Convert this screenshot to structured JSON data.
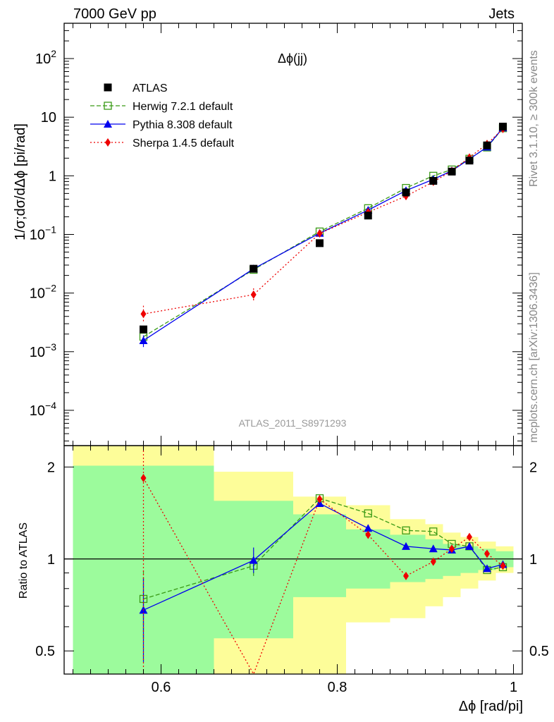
{
  "header": {
    "left": "7000 GeV pp",
    "right": "Jets"
  },
  "side_text": {
    "top": "Rivet 3.1.10, ≥ 300k events",
    "bottom": "mcplots.cern.ch [arXiv:1306.3436]"
  },
  "watermark": "ATLAS_2011_S8971293",
  "colors": {
    "atlas": "#000000",
    "herwig": "#3a9a16",
    "pythia": "#0000ee",
    "sherpa": "#ee0000",
    "band_inner": "#9cfb9c",
    "band_outer": "#fdfd99"
  },
  "chart_data": [
    {
      "type": "scatter",
      "title": "Δϕ(jj)",
      "ylabel": "1/σ;dσ/dΔϕ [pi/rad]",
      "yscale": "log",
      "ylim": [
        2.5e-05,
        400
      ],
      "xlim": [
        0.49,
        1.01
      ],
      "y_ticks": [
        {
          "value": 0.0001,
          "base": "10",
          "exp": "−4"
        },
        {
          "value": 0.001,
          "base": "10",
          "exp": "−3"
        },
        {
          "value": 0.01,
          "base": "10",
          "exp": "−2"
        },
        {
          "value": 0.1,
          "base": "10",
          "exp": "−1"
        },
        {
          "value": 1,
          "base": "1",
          "exp": ""
        },
        {
          "value": 10,
          "base": "10",
          "exp": ""
        },
        {
          "value": 100,
          "base": "10",
          "exp": "2"
        }
      ],
      "legend_position": "top-left",
      "x": [
        0.58,
        0.705,
        0.78,
        0.835,
        0.878,
        0.909,
        0.93,
        0.95,
        0.97,
        0.988
      ],
      "series": [
        {
          "name": "ATLAS",
          "key": "atlas",
          "values": [
            0.0024,
            0.026,
            0.071,
            0.21,
            0.52,
            0.82,
            1.18,
            1.82,
            3.3,
            6.9
          ]
        },
        {
          "name": "Herwig 7.2.1 default",
          "key": "herwig",
          "values": [
            0.0018,
            0.025,
            0.112,
            0.28,
            0.62,
            1.0,
            1.28,
            1.95,
            3.05,
            6.5
          ]
        },
        {
          "name": "Pythia 8.308 default",
          "key": "pythia",
          "values": [
            0.00155,
            0.026,
            0.105,
            0.26,
            0.56,
            0.87,
            1.22,
            1.93,
            3.1,
            6.6
          ],
          "err_low": [
            0.0012,
            0.023,
            0.099,
            0.25,
            0.54,
            0.85,
            1.19,
            1.88,
            3.0,
            6.45
          ],
          "err_high": [
            0.0019,
            0.029,
            0.111,
            0.27,
            0.58,
            0.89,
            1.25,
            1.98,
            3.2,
            6.75
          ]
        },
        {
          "name": "Sherpa 1.4.5 default",
          "key": "sherpa",
          "values": [
            0.0044,
            0.0094,
            0.104,
            0.24,
            0.45,
            0.79,
            1.21,
            2.05,
            3.5,
            6.3
          ],
          "err_low": [
            0.0033,
            0.0075,
            0.098,
            0.228,
            0.425,
            0.76,
            1.17,
            1.98,
            3.4,
            6.1
          ],
          "err_high": [
            0.0065,
            0.013,
            0.11,
            0.252,
            0.475,
            0.82,
            1.25,
            2.12,
            3.6,
            6.5
          ]
        }
      ]
    },
    {
      "type": "line",
      "ylabel": "Ratio to ATLAS",
      "xlabel": "Δϕ [rad/pi]",
      "yscale": "log",
      "ylim": [
        0.42,
        2.35
      ],
      "y_ticks": [
        0.5,
        1,
        2
      ],
      "x_ticks": [
        0.6,
        0.8,
        1
      ],
      "reference_line": 1,
      "x": [
        0.58,
        0.705,
        0.78,
        0.835,
        0.878,
        0.909,
        0.93,
        0.95,
        0.97,
        0.988
      ],
      "bands": [
        {
          "x0": 0.5,
          "x1": 0.66,
          "inner": [
            0.35,
            2.02
          ],
          "outer": [
            0.35,
            2.5
          ]
        },
        {
          "x0": 0.66,
          "x1": 0.75,
          "inner": [
            0.55,
            1.55
          ],
          "outer": [
            0.35,
            1.93
          ]
        },
        {
          "x0": 0.75,
          "x1": 0.81,
          "inner": [
            0.75,
            1.4
          ],
          "outer": [
            0.35,
            1.6
          ]
        },
        {
          "x0": 0.81,
          "x1": 0.86,
          "inner": [
            0.8,
            1.25
          ],
          "outer": [
            0.62,
            1.5
          ]
        },
        {
          "x0": 0.86,
          "x1": 0.9,
          "inner": [
            0.84,
            1.2
          ],
          "outer": [
            0.64,
            1.35
          ]
        },
        {
          "x0": 0.9,
          "x1": 0.92,
          "inner": [
            0.86,
            1.16
          ],
          "outer": [
            0.7,
            1.3
          ]
        },
        {
          "x0": 0.92,
          "x1": 0.94,
          "inner": [
            0.88,
            1.12
          ],
          "outer": [
            0.75,
            1.22
          ]
        },
        {
          "x0": 0.94,
          "x1": 0.96,
          "inner": [
            0.9,
            1.1
          ],
          "outer": [
            0.8,
            1.18
          ]
        },
        {
          "x0": 0.96,
          "x1": 0.98,
          "inner": [
            0.92,
            1.08
          ],
          "outer": [
            0.85,
            1.14
          ]
        },
        {
          "x0": 0.98,
          "x1": 1.0,
          "inner": [
            0.94,
            1.06
          ],
          "outer": [
            0.9,
            1.1
          ]
        }
      ],
      "series": [
        {
          "name": "Herwig 7.2.1 default",
          "key": "herwig",
          "values": [
            0.74,
            0.95,
            1.58,
            1.41,
            1.24,
            1.23,
            1.12,
            1.1,
            0.92,
            0.94
          ],
          "err_low": [
            0.55,
            0.88
          ],
          "err_high": [
            0.93,
            1.02
          ]
        },
        {
          "name": "Pythia 8.308 default",
          "key": "pythia",
          "values": [
            0.68,
            0.99,
            1.52,
            1.26,
            1.1,
            1.08,
            1.07,
            1.1,
            0.93,
            0.96
          ],
          "err_low": [
            0.46,
            0.9
          ],
          "err_high": [
            0.87,
            1.09
          ]
        },
        {
          "name": "Sherpa 1.4.5 default",
          "key": "sherpa",
          "values": [
            1.84,
            0.33,
            1.57,
            1.2,
            0.88,
            0.98,
            1.08,
            1.18,
            1.04,
            0.95
          ],
          "err_low": [
            0.0,
            0.28
          ],
          "err_high": [
            2.45,
            0.4
          ]
        }
      ]
    }
  ]
}
